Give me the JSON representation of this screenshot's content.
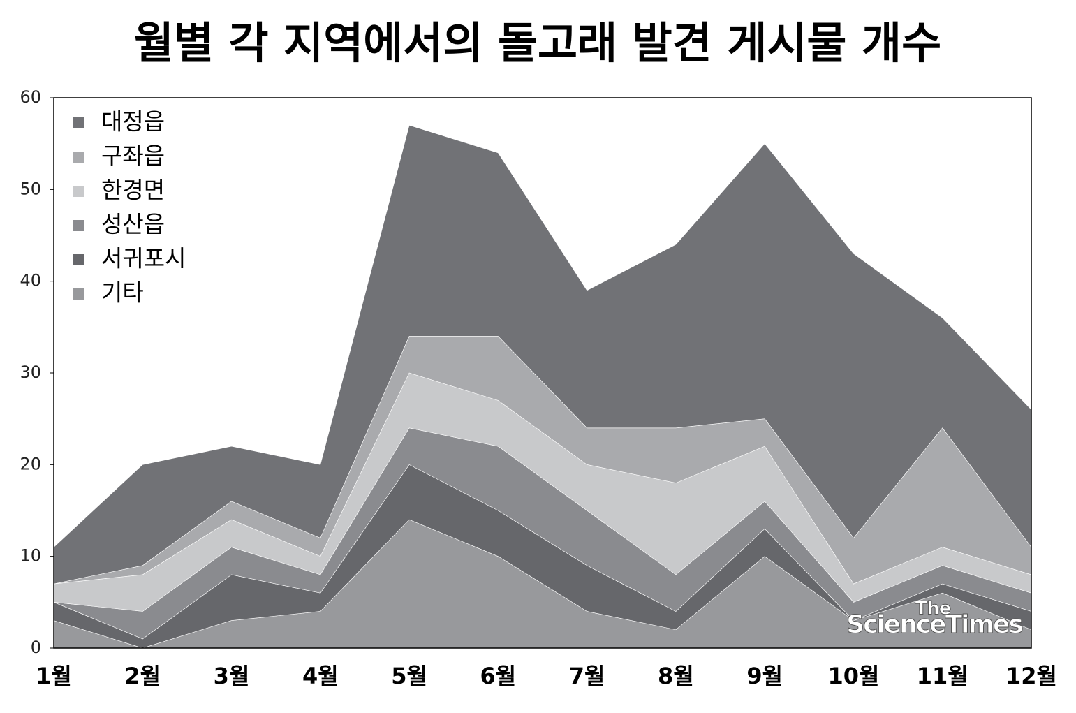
{
  "chart_data": {
    "type": "stacked-area",
    "title": "월별 각 지역에서의 돌고래 발견 게시물 개수",
    "categories": [
      "1월",
      "2월",
      "3월",
      "4월",
      "5월",
      "6월",
      "7월",
      "8월",
      "9월",
      "10월",
      "11월",
      "12월"
    ],
    "series": [
      {
        "name": "대정읍",
        "color": "#717276",
        "values": [
          4,
          11,
          6,
          8,
          23,
          20,
          15,
          20,
          30,
          31,
          12,
          15
        ]
      },
      {
        "name": "구좌읍",
        "color": "#a9aaad",
        "values": [
          0,
          1,
          2,
          2,
          4,
          7,
          4,
          6,
          3,
          5,
          13,
          3
        ]
      },
      {
        "name": "한경면",
        "color": "#c8c9cb",
        "values": [
          2,
          4,
          3,
          2,
          6,
          5,
          5,
          10,
          6,
          2,
          2,
          2
        ]
      },
      {
        "name": "성산읍",
        "color": "#8a8b8f",
        "values": [
          0,
          3,
          3,
          2,
          4,
          7,
          6,
          4,
          3,
          2,
          2,
          2
        ]
      },
      {
        "name": "서귀포시",
        "color": "#66676b",
        "values": [
          2,
          1,
          5,
          2,
          6,
          5,
          5,
          2,
          3,
          0,
          1,
          2
        ]
      },
      {
        "name": "기타",
        "color": "#98999c",
        "values": [
          3,
          0,
          3,
          4,
          14,
          10,
          4,
          2,
          10,
          3,
          6,
          2
        ]
      }
    ],
    "ylim": [
      0,
      60
    ],
    "yticks": [
      0,
      10,
      20,
      30,
      40,
      50,
      60
    ],
    "legend": "upper-left",
    "watermark": [
      "The",
      "ScienceTimes"
    ]
  }
}
